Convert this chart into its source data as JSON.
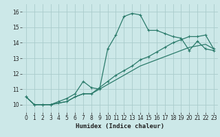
{
  "xlabel": "Humidex (Indice chaleur)",
  "bg_color": "#cce8e8",
  "grid_color": "#aacccc",
  "line_color": "#2a7a6a",
  "x_values": [
    0,
    1,
    2,
    3,
    4,
    5,
    6,
    7,
    8,
    9,
    10,
    11,
    12,
    13,
    14,
    15,
    16,
    17,
    18,
    19,
    20,
    21,
    22,
    23
  ],
  "line1": [
    10.5,
    10.0,
    10.0,
    10.0,
    10.2,
    10.4,
    10.7,
    11.5,
    11.1,
    11.0,
    13.6,
    14.5,
    15.7,
    15.9,
    15.8,
    14.8,
    14.8,
    14.6,
    14.4,
    14.3,
    13.5,
    14.1,
    13.6,
    13.5
  ],
  "line2": [
    10.5,
    10.0,
    10.0,
    10.0,
    10.1,
    10.2,
    10.5,
    10.7,
    10.7,
    11.1,
    11.5,
    11.9,
    12.2,
    12.5,
    12.9,
    13.1,
    13.4,
    13.7,
    14.0,
    14.2,
    14.4,
    14.4,
    14.5,
    13.6
  ],
  "line3": [
    10.5,
    10.0,
    10.0,
    10.0,
    10.1,
    10.2,
    10.5,
    10.7,
    10.7,
    11.0,
    11.3,
    11.6,
    11.9,
    12.2,
    12.5,
    12.7,
    12.9,
    13.1,
    13.3,
    13.5,
    13.7,
    13.8,
    13.9,
    13.6
  ],
  "ylim": [
    9.5,
    16.5
  ],
  "xlim": [
    -0.5,
    23.5
  ],
  "yticks": [
    10,
    11,
    12,
    13,
    14,
    15,
    16
  ],
  "xticks": [
    0,
    1,
    2,
    3,
    4,
    5,
    6,
    7,
    8,
    9,
    10,
    11,
    12,
    13,
    14,
    15,
    16,
    17,
    18,
    19,
    20,
    21,
    22,
    23
  ],
  "xlabel_fontsize": 6.5,
  "tick_fontsize": 5.5,
  "line_width": 0.9,
  "marker_size": 3.0,
  "marker_ew": 0.8
}
